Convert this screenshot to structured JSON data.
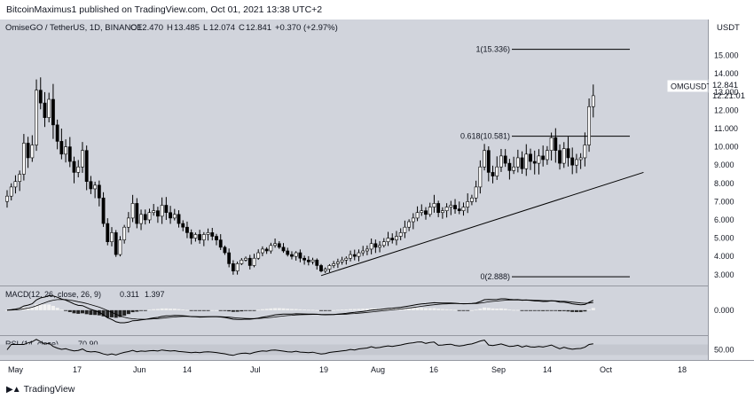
{
  "header": {
    "published": "BitcoinMaximus1 published on TradingView.com, Oct 01, 2021 13:38 UTC+2"
  },
  "footer": {
    "brand": "TradingView",
    "logo_icon": "tradingview-logo-icon"
  },
  "colors": {
    "panel_bg": "#d1d4dc",
    "up_body": "#ffffff",
    "down_body": "#000000",
    "line": "#000000",
    "text": "#131722"
  },
  "chart_data": {
    "type": "candlestick",
    "title": "OmiseGO / TetherUS, 1D, BINANCE",
    "symbol_tag": "OMGUSDT",
    "ohlc": {
      "o_label": "O",
      "open": "12.470",
      "h_label": "H",
      "high": "13.485",
      "l_label": "L",
      "low": "12.074",
      "c_label": "C",
      "close": "12.841",
      "change": "+0.370 (+2.97%)"
    },
    "last_price": "12.841",
    "countdown": "12:21:01",
    "currency": "USDT",
    "ylim": [
      2.6,
      16.0
    ],
    "y_ticks": [
      "3.000",
      "4.000",
      "5.000",
      "6.000",
      "7.000",
      "8.000",
      "9.000",
      "10.000",
      "11.000",
      "12.000",
      "13.000",
      "14.000",
      "15.000"
    ],
    "x_ticks": [
      "May",
      "17",
      "Jun",
      "14",
      "Jul",
      "19",
      "Aug",
      "16",
      "Sep",
      "14",
      "Oct",
      "18"
    ],
    "fib_levels": [
      {
        "label": "1(15.336)",
        "value": 15.336
      },
      {
        "label": "0.618(10.581)",
        "value": 10.581
      },
      {
        "label": "0(2.888)",
        "value": 2.888
      }
    ],
    "trendline": {
      "from_day": 75,
      "from_value": 2.95,
      "to_day": 152,
      "to_value": 8.6
    },
    "series_close": [
      7.3,
      7.8,
      8.1,
      8.5,
      10.2,
      9.4,
      10.1,
      13.1,
      12.4,
      11.6,
      12.6,
      11.2,
      10.3,
      9.6,
      10.0,
      9.2,
      8.6,
      8.9,
      9.8,
      8.1,
      7.7,
      7.9,
      7.2,
      5.8,
      4.8,
      5.3,
      4.1,
      4.9,
      5.6,
      6.1,
      6.9,
      5.8,
      6.3,
      6.0,
      6.4,
      6.5,
      6.2,
      6.8,
      6.4,
      6.1,
      6.3,
      5.8,
      5.6,
      5.3,
      5.0,
      5.2,
      4.9,
      5.2,
      5.3,
      5.1,
      4.9,
      4.5,
      4.2,
      3.6,
      3.2,
      3.6,
      3.8,
      3.9,
      3.5,
      3.9,
      4.2,
      4.4,
      4.3,
      4.6,
      4.7,
      4.5,
      4.3,
      4.1,
      4.0,
      4.2,
      3.9,
      3.8,
      3.7,
      3.8,
      3.5,
      3.2,
      3.3,
      3.5,
      3.6,
      3.7,
      3.8,
      3.9,
      4.1,
      4.0,
      4.2,
      4.3,
      4.4,
      4.7,
      4.5,
      4.6,
      4.8,
      5.0,
      4.9,
      5.1,
      5.3,
      5.6,
      5.9,
      6.1,
      6.4,
      6.5,
      6.3,
      6.7,
      6.9,
      6.4,
      6.5,
      6.7,
      6.8,
      6.6,
      6.5,
      6.7,
      7.0,
      7.2,
      7.8,
      8.9,
      9.8,
      8.6,
      8.4,
      8.9,
      9.5,
      9.1,
      8.7,
      8.9,
      9.4,
      8.8,
      9.6,
      9.2,
      9.1,
      9.5,
      9.3,
      9.8,
      10.5,
      9.8,
      9.1,
      9.9,
      9.4,
      9.0,
      9.3,
      9.4,
      10.1,
      12.2,
      12.8
    ],
    "macd": {
      "label": "MACD",
      "values_text": "(12, 26, close, 26, 9)",
      "macd_value": "0.311",
      "signal_value": "1.397",
      "ylim": [
        -2.0,
        1.9
      ],
      "tick": "0.000",
      "tick_value": 0.0
    },
    "rsi": {
      "label": "RSI",
      "values_text": "(14, close)",
      "value": "70.90",
      "ylim": [
        18,
        95
      ],
      "tick": "50.00",
      "tick_value": 50.0
    }
  }
}
